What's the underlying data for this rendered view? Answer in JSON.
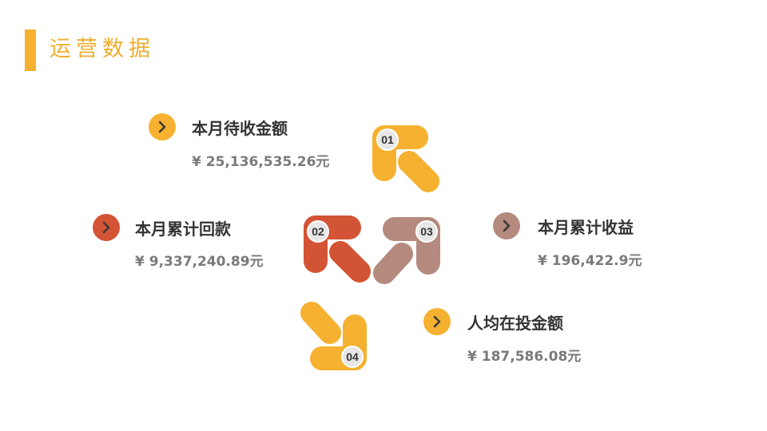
{
  "title": "运营数据",
  "colors": {
    "yellow": "#F5B12F",
    "red": "#D35434",
    "mauve": "#B58A7E",
    "title_bar": "#F5B12F"
  },
  "items": [
    {
      "label": "本月待收金额",
      "value": "¥ 25,136,535.26元",
      "color": "#F5B12F",
      "icon": "chevron-right-icon"
    },
    {
      "label": "本月累计回款",
      "value": "¥ 9,337,240.89元",
      "color": "#D35434",
      "icon": "chevron-right-icon"
    },
    {
      "label": "本月累计收益",
      "value": "¥ 196,422.9元",
      "color": "#B58A7E",
      "icon": "chevron-right-icon"
    },
    {
      "label": "人均在投金额",
      "value": "¥ 187,586.08元",
      "color": "#F5B12F",
      "icon": "chevron-right-icon"
    }
  ],
  "diagram": {
    "badges": [
      "01",
      "02",
      "03",
      "04"
    ],
    "badge_colors": [
      "#F5B12F",
      "#D35434",
      "#B58A7E",
      "#F5B12F"
    ]
  }
}
